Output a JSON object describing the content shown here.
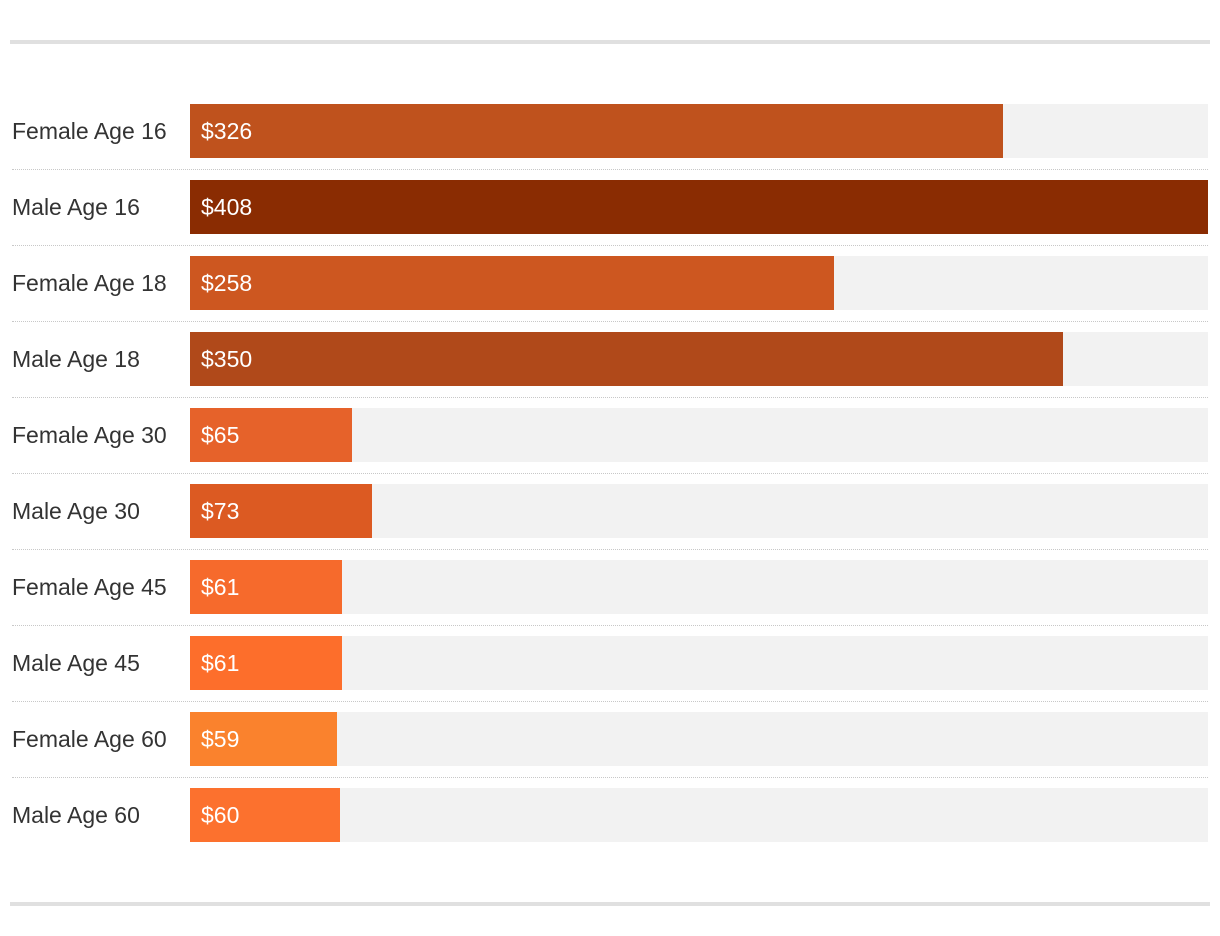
{
  "chart_data": {
    "type": "bar",
    "orientation": "horizontal",
    "title": "",
    "xlabel": "",
    "ylabel": "",
    "xlim": [
      0,
      408
    ],
    "value_prefix": "$",
    "categories": [
      "Female Age 16",
      "Male Age 16",
      "Female Age 18",
      "Male Age 18",
      "Female Age 30",
      "Male Age 30",
      "Female Age 45",
      "Male Age 45",
      "Female Age 60",
      "Male Age 60"
    ],
    "values": [
      326,
      408,
      258,
      350,
      65,
      73,
      61,
      61,
      59,
      60
    ],
    "value_labels": [
      "$326",
      "$408",
      "$258",
      "$350",
      "$65",
      "$73",
      "$61",
      "$61",
      "$59",
      "$60"
    ],
    "colors": [
      "#bf521d",
      "#8a2c02",
      "#cd5720",
      "#b0491a",
      "#e6622a",
      "#dc5a22",
      "#f66a2c",
      "#fd6e2b",
      "#fa822d",
      "#fc712e"
    ],
    "track_color": "#f2f2f2"
  }
}
